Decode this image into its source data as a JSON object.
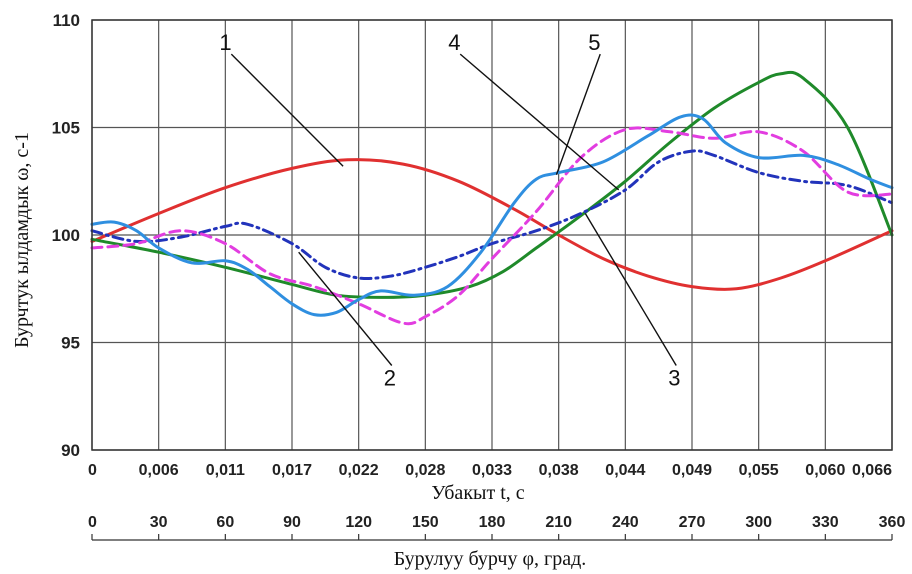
{
  "chart_data": {
    "type": "line",
    "ylabel": "Бурчтук ылдамдык ω, с-1",
    "xlabel": "Убакыт t, с",
    "x2label": "Бурулуу бурчу φ, град.",
    "ylim": [
      90,
      110
    ],
    "yticks": [
      90,
      95,
      100,
      105,
      110
    ],
    "xlim": [
      0,
      360
    ],
    "xticks_phi": [
      "0",
      "30",
      "60",
      "90",
      "120",
      "150",
      "180",
      "210",
      "240",
      "270",
      "300",
      "330",
      "360"
    ],
    "xticks_t": [
      "0",
      "0,006",
      "0,011",
      "0,017",
      "0,022",
      "0,028",
      "0,033",
      "0,038",
      "0,044",
      "0,049",
      "0,055",
      "0,060",
      "0,066"
    ],
    "grid": true,
    "series": [
      {
        "name": "1",
        "color": "#e03030",
        "style": "solid",
        "x": [
          0,
          30,
          60,
          90,
          115,
          140,
          165,
          190,
          210,
          230,
          250,
          270,
          290,
          310,
          330,
          360
        ],
        "y": [
          99.7,
          101.0,
          102.2,
          103.1,
          103.5,
          103.3,
          102.5,
          101.2,
          100.0,
          98.9,
          98.1,
          97.6,
          97.5,
          98.0,
          98.8,
          100.2
        ]
      },
      {
        "name": "2",
        "color": "#2233bb",
        "style": "dashdot",
        "x": [
          0,
          20,
          40,
          60,
          70,
          90,
          105,
          120,
          135,
          150,
          165,
          180,
          200,
          220,
          240,
          255,
          270,
          280,
          300,
          320,
          340,
          360
        ],
        "y": [
          100.2,
          99.7,
          99.9,
          100.4,
          100.5,
          99.6,
          98.5,
          98.0,
          98.1,
          98.5,
          99.0,
          99.6,
          100.2,
          101.0,
          102.1,
          103.4,
          103.9,
          103.7,
          102.9,
          102.5,
          102.3,
          101.5
        ]
      },
      {
        "name": "3",
        "color": "#1f8a2a",
        "style": "solid",
        "x": [
          0,
          30,
          60,
          90,
          110,
          130,
          150,
          170,
          185,
          200,
          220,
          240,
          260,
          280,
          300,
          310,
          320,
          340,
          360
        ],
        "y": [
          99.8,
          99.2,
          98.5,
          97.7,
          97.2,
          97.1,
          97.2,
          97.6,
          98.3,
          99.4,
          100.9,
          102.5,
          104.3,
          105.9,
          107.1,
          107.5,
          107.3,
          105.0,
          100.0
        ]
      },
      {
        "name": "4",
        "color": "#e23de0",
        "style": "dashed",
        "x": [
          0,
          20,
          40,
          60,
          80,
          100,
          120,
          140,
          150,
          165,
          180,
          200,
          220,
          240,
          260,
          280,
          300,
          320,
          340,
          360
        ],
        "y": [
          99.4,
          99.6,
          100.2,
          99.6,
          98.2,
          97.6,
          96.8,
          95.9,
          96.2,
          97.2,
          98.9,
          101.1,
          103.6,
          104.9,
          104.8,
          104.5,
          104.8,
          103.9,
          102.0,
          101.9
        ]
      },
      {
        "name": "5",
        "color": "#2f8fe0",
        "style": "solid",
        "x": [
          0,
          10,
          20,
          30,
          45,
          60,
          70,
          80,
          90,
          100,
          110,
          120,
          130,
          145,
          160,
          175,
          190,
          200,
          210,
          230,
          250,
          265,
          275,
          285,
          300,
          320,
          335,
          350,
          360
        ],
        "y": [
          100.5,
          100.6,
          100.2,
          99.4,
          98.7,
          98.8,
          98.4,
          97.6,
          96.8,
          96.3,
          96.4,
          97.0,
          97.4,
          97.2,
          97.6,
          99.2,
          101.5,
          102.6,
          102.9,
          103.4,
          104.6,
          105.5,
          105.4,
          104.3,
          103.6,
          103.7,
          103.3,
          102.6,
          102.2
        ]
      }
    ],
    "callouts": [
      {
        "label": "1",
        "text_x": 60,
        "text_y": 108.6,
        "line_to_x": 113,
        "line_to_y": 103.2
      },
      {
        "label": "2",
        "text_x": 134,
        "text_y": 93.0,
        "line_to_x": 93,
        "line_to_y": 99.2
      },
      {
        "label": "3",
        "text_x": 262,
        "text_y": 93.0,
        "line_to_x": 222,
        "line_to_y": 101.0
      },
      {
        "label": "4",
        "text_x": 163,
        "text_y": 108.6,
        "line_to_x": 237,
        "line_to_y": 102.1
      },
      {
        "label": "5",
        "text_x": 226,
        "text_y": 108.6,
        "line_to_x": 209,
        "line_to_y": 102.8
      }
    ]
  }
}
